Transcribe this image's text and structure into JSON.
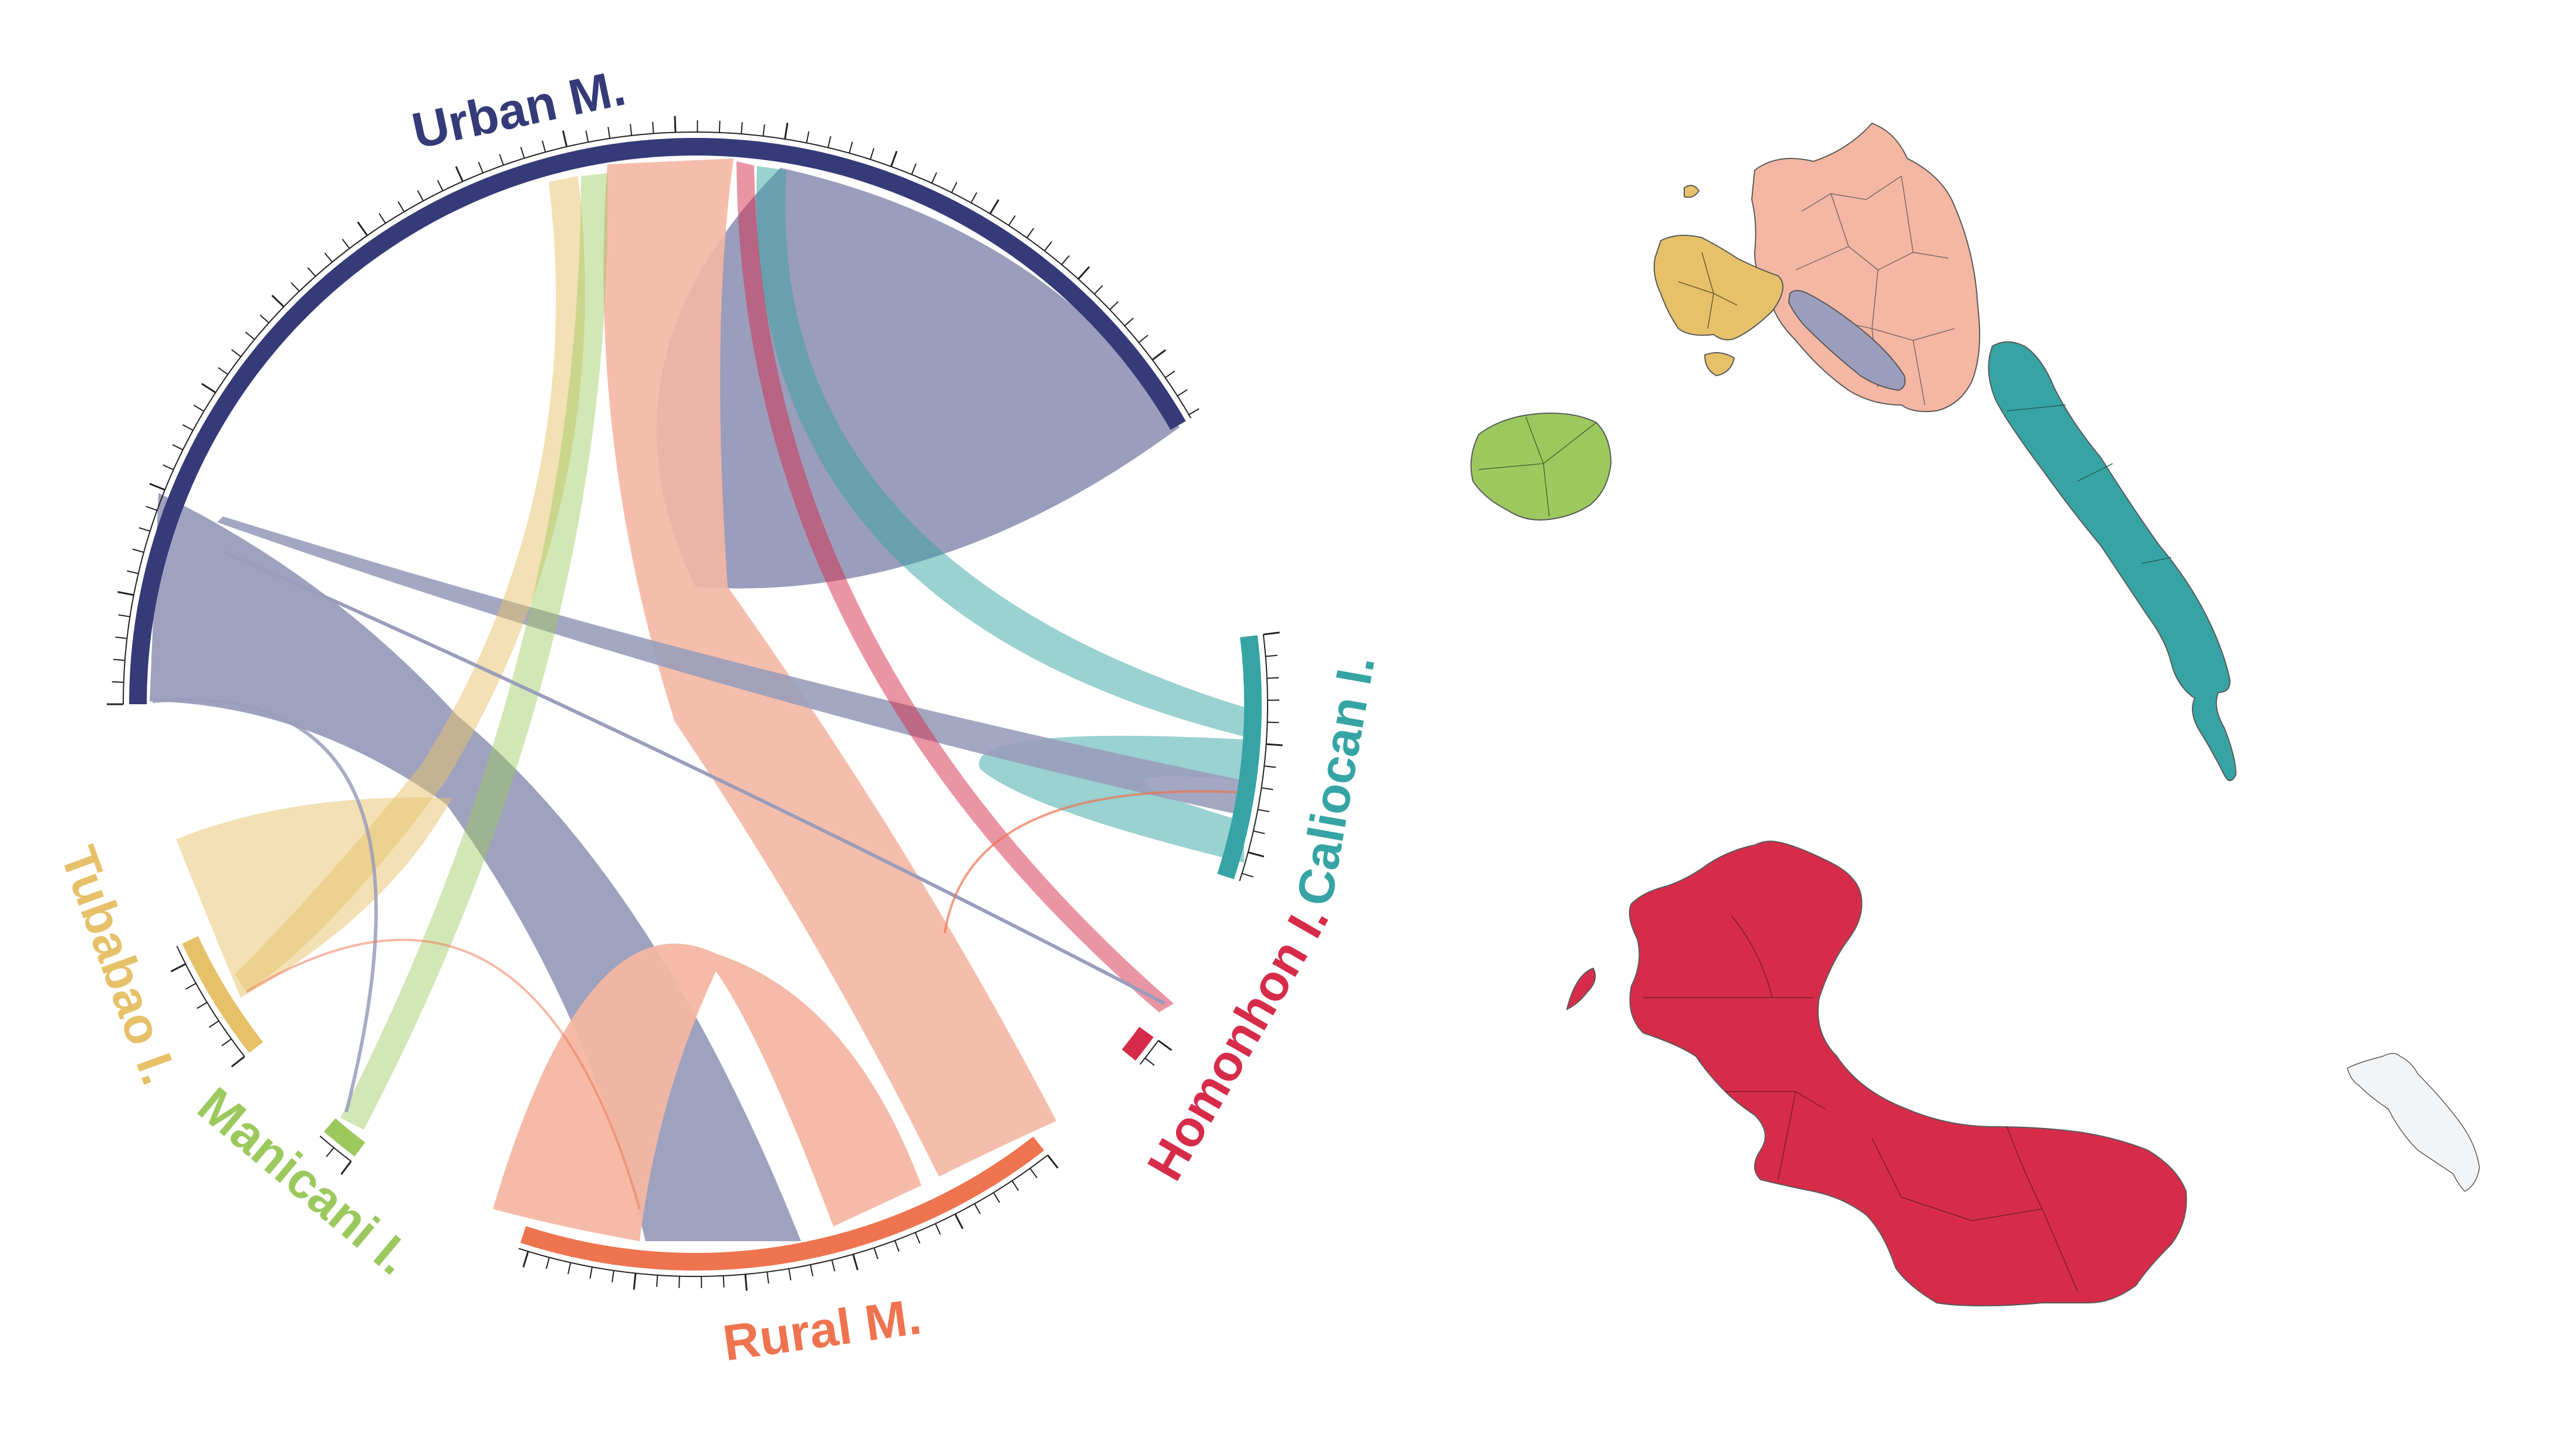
{
  "chord_diagram": {
    "groups": [
      {
        "id": "urban",
        "label": "Urban M.",
        "color": "#353b78"
      },
      {
        "id": "caliocan",
        "label": "Caliocan I.",
        "color": "#36a4a4"
      },
      {
        "id": "homonhon",
        "label": "Homonhon I.",
        "color": "#d62c4a"
      },
      {
        "id": "rural",
        "label": "Rural M.",
        "color": "#ee7450"
      },
      {
        "id": "manicani",
        "label": "Manicani I.",
        "color": "#9cc95e"
      },
      {
        "id": "tubabao",
        "label": "Tubabao I.",
        "color": "#e7c169"
      }
    ]
  },
  "map": {
    "regions": [
      {
        "id": "urban-mainland",
        "group": "urban",
        "color": "#9a9dbb"
      },
      {
        "id": "rural-mainland",
        "group": "rural",
        "color": "#f4b7a3"
      },
      {
        "id": "tubabao-island",
        "group": "tubabao",
        "color": "#e7c169"
      },
      {
        "id": "manicani-island",
        "group": "manicani",
        "color": "#9cc95e"
      },
      {
        "id": "caliocan-island",
        "group": "caliocan",
        "color": "#36a4a4"
      },
      {
        "id": "homonhon-island",
        "group": "homonhon",
        "color": "#d62c4a"
      },
      {
        "id": "unassigned-island",
        "group": "",
        "color": "#f3f4f5"
      }
    ]
  }
}
